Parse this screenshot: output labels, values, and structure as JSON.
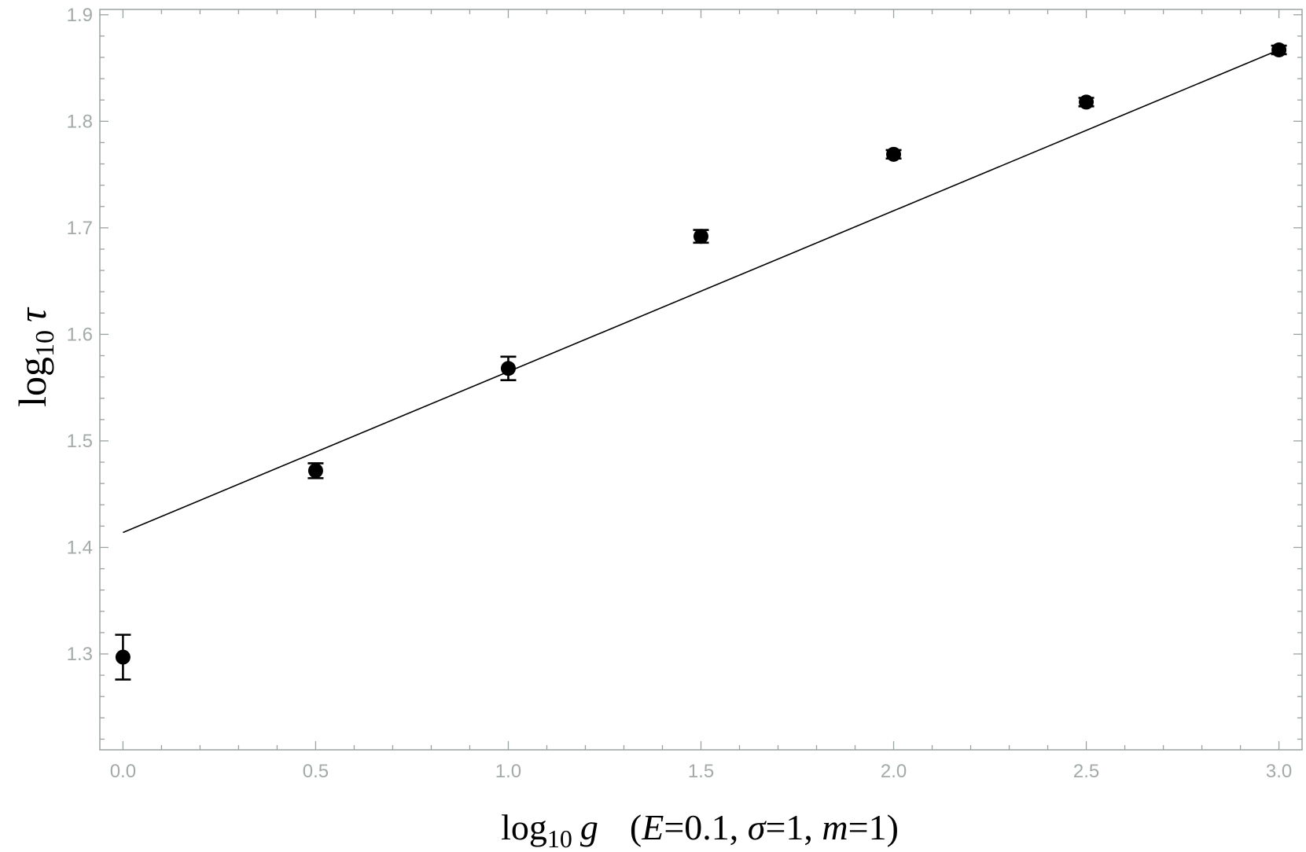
{
  "chart_data": {
    "type": "scatter",
    "xlabel": {
      "main": "log",
      "sub": "10",
      "var": "g",
      "params_open": "(",
      "E_sym": "E",
      "E_val": "=0.1, ",
      "sigma_sym": "σ",
      "sigma_val": "=1, ",
      "m_sym": "m",
      "m_val": "=1)"
    },
    "ylabel": {
      "main": "log",
      "sub": "10",
      "var": "τ"
    },
    "xlim": [
      -0.06,
      3.06
    ],
    "ylim": [
      1.21,
      1.905
    ],
    "x_ticks": [
      {
        "value": 0.0,
        "label": "0.0"
      },
      {
        "value": 0.5,
        "label": "0.5"
      },
      {
        "value": 1.0,
        "label": "1.0"
      },
      {
        "value": 1.5,
        "label": "1.5"
      },
      {
        "value": 2.0,
        "label": "2.0"
      },
      {
        "value": 2.5,
        "label": "2.5"
      },
      {
        "value": 3.0,
        "label": "3.0"
      }
    ],
    "y_ticks": [
      {
        "value": 1.3,
        "label": "1.3"
      },
      {
        "value": 1.4,
        "label": "1.4"
      },
      {
        "value": 1.5,
        "label": "1.5"
      },
      {
        "value": 1.6,
        "label": "1.6"
      },
      {
        "value": 1.7,
        "label": "1.7"
      },
      {
        "value": 1.8,
        "label": "1.8"
      },
      {
        "value": 1.9,
        "label": "1.9"
      }
    ],
    "x_minor_step": 0.1,
    "y_minor_step": 0.02,
    "series": [
      {
        "points": [
          {
            "x": 0.0,
            "y": 1.297,
            "err": 0.021
          },
          {
            "x": 0.5,
            "y": 1.472,
            "err": 0.007
          },
          {
            "x": 1.0,
            "y": 1.568,
            "err": 0.011
          },
          {
            "x": 1.5,
            "y": 1.692,
            "err": 0.006
          },
          {
            "x": 2.0,
            "y": 1.769,
            "err": 0.004
          },
          {
            "x": 2.5,
            "y": 1.818,
            "err": 0.004
          },
          {
            "x": 3.0,
            "y": 1.867,
            "err": 0.004
          }
        ]
      }
    ],
    "fit_line": {
      "x": [
        0.0,
        3.0
      ],
      "y": [
        1.414,
        1.867
      ]
    },
    "colors": {
      "frame": "#9aa3a1",
      "tick_label": "#a3aaa8",
      "marks": "#000000"
    }
  }
}
